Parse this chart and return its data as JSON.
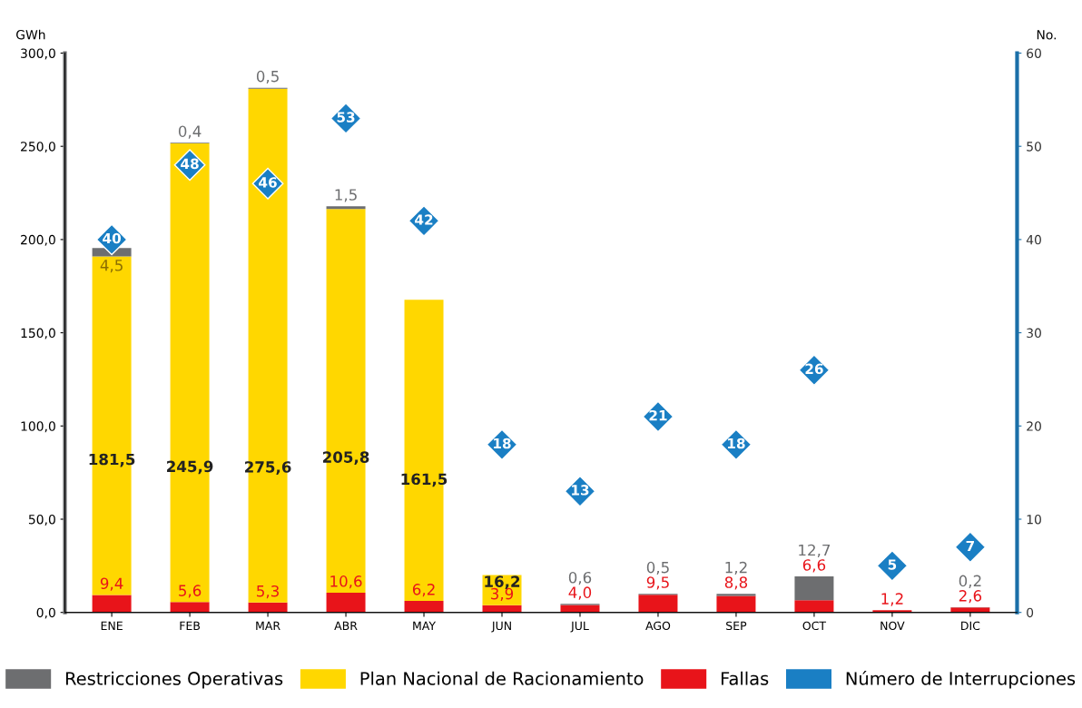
{
  "chart_data": {
    "type": "bar",
    "stacked": true,
    "categories": [
      "ENE",
      "FEB",
      "MAR",
      "ABR",
      "MAY",
      "JUN",
      "JUL",
      "AGO",
      "SEP",
      "OCT",
      "NOV",
      "DIC"
    ],
    "series": [
      {
        "name": "Fallas",
        "color": "#e8141a",
        "values": [
          9.4,
          5.6,
          5.3,
          10.6,
          6.2,
          3.9,
          4.0,
          9.5,
          8.8,
          6.6,
          1.2,
          2.6
        ],
        "value_labels": [
          "9,4",
          "5,6",
          "5,3",
          "10,6",
          "6,2",
          "3,9",
          "4,0",
          "9,5",
          "8,8",
          "6,6",
          "1,2",
          "2,6"
        ]
      },
      {
        "name": "Plan Nacional de Racionamiento",
        "color": "#ffd700",
        "values": [
          181.5,
          245.9,
          275.6,
          205.8,
          161.5,
          16.2,
          null,
          null,
          null,
          null,
          null,
          null
        ],
        "value_labels": [
          "181,5",
          "245,9",
          "275,6",
          "205,8",
          "161,5",
          "16,2",
          null,
          null,
          null,
          null,
          null,
          null
        ]
      },
      {
        "name": "Restricciones Operativas",
        "color": "#6d6e70",
        "values": [
          4.5,
          0.4,
          0.5,
          1.5,
          null,
          null,
          0.6,
          0.5,
          1.2,
          12.7,
          null,
          0.2
        ],
        "value_labels": [
          "4,5",
          "0,4",
          "0,5",
          "1,5",
          null,
          null,
          "0,6",
          "0,5",
          "1,2",
          "12,7",
          null,
          "0,2"
        ]
      },
      {
        "name": "Número de Interrupciones",
        "type": "scatter",
        "axis": "y2",
        "marker": "diamond",
        "color": "#1a7fc4",
        "values": [
          40,
          48,
          46,
          53,
          42,
          18,
          13,
          21,
          18,
          26,
          5,
          7
        ],
        "value_labels": [
          "40",
          "48",
          "46",
          "53",
          "42",
          "18",
          "13",
          "21",
          "18",
          "26",
          "5",
          "7"
        ]
      }
    ],
    "ylabel": "GWh",
    "y2label": "No.",
    "ylim": [
      0,
      300
    ],
    "yticks": [
      {
        "value": 0,
        "label": "0,0"
      },
      {
        "value": 50,
        "label": "50,0"
      },
      {
        "value": 100,
        "label": "100,0"
      },
      {
        "value": 150,
        "label": "150,0"
      },
      {
        "value": 200,
        "label": "200,0"
      },
      {
        "value": 250,
        "label": "250,0"
      },
      {
        "value": 300,
        "label": "300,0"
      }
    ],
    "y2lim": [
      0,
      60
    ],
    "y2ticks": [
      0,
      10,
      20,
      30,
      40,
      50,
      60
    ],
    "grid": false,
    "legend": "bottom"
  }
}
